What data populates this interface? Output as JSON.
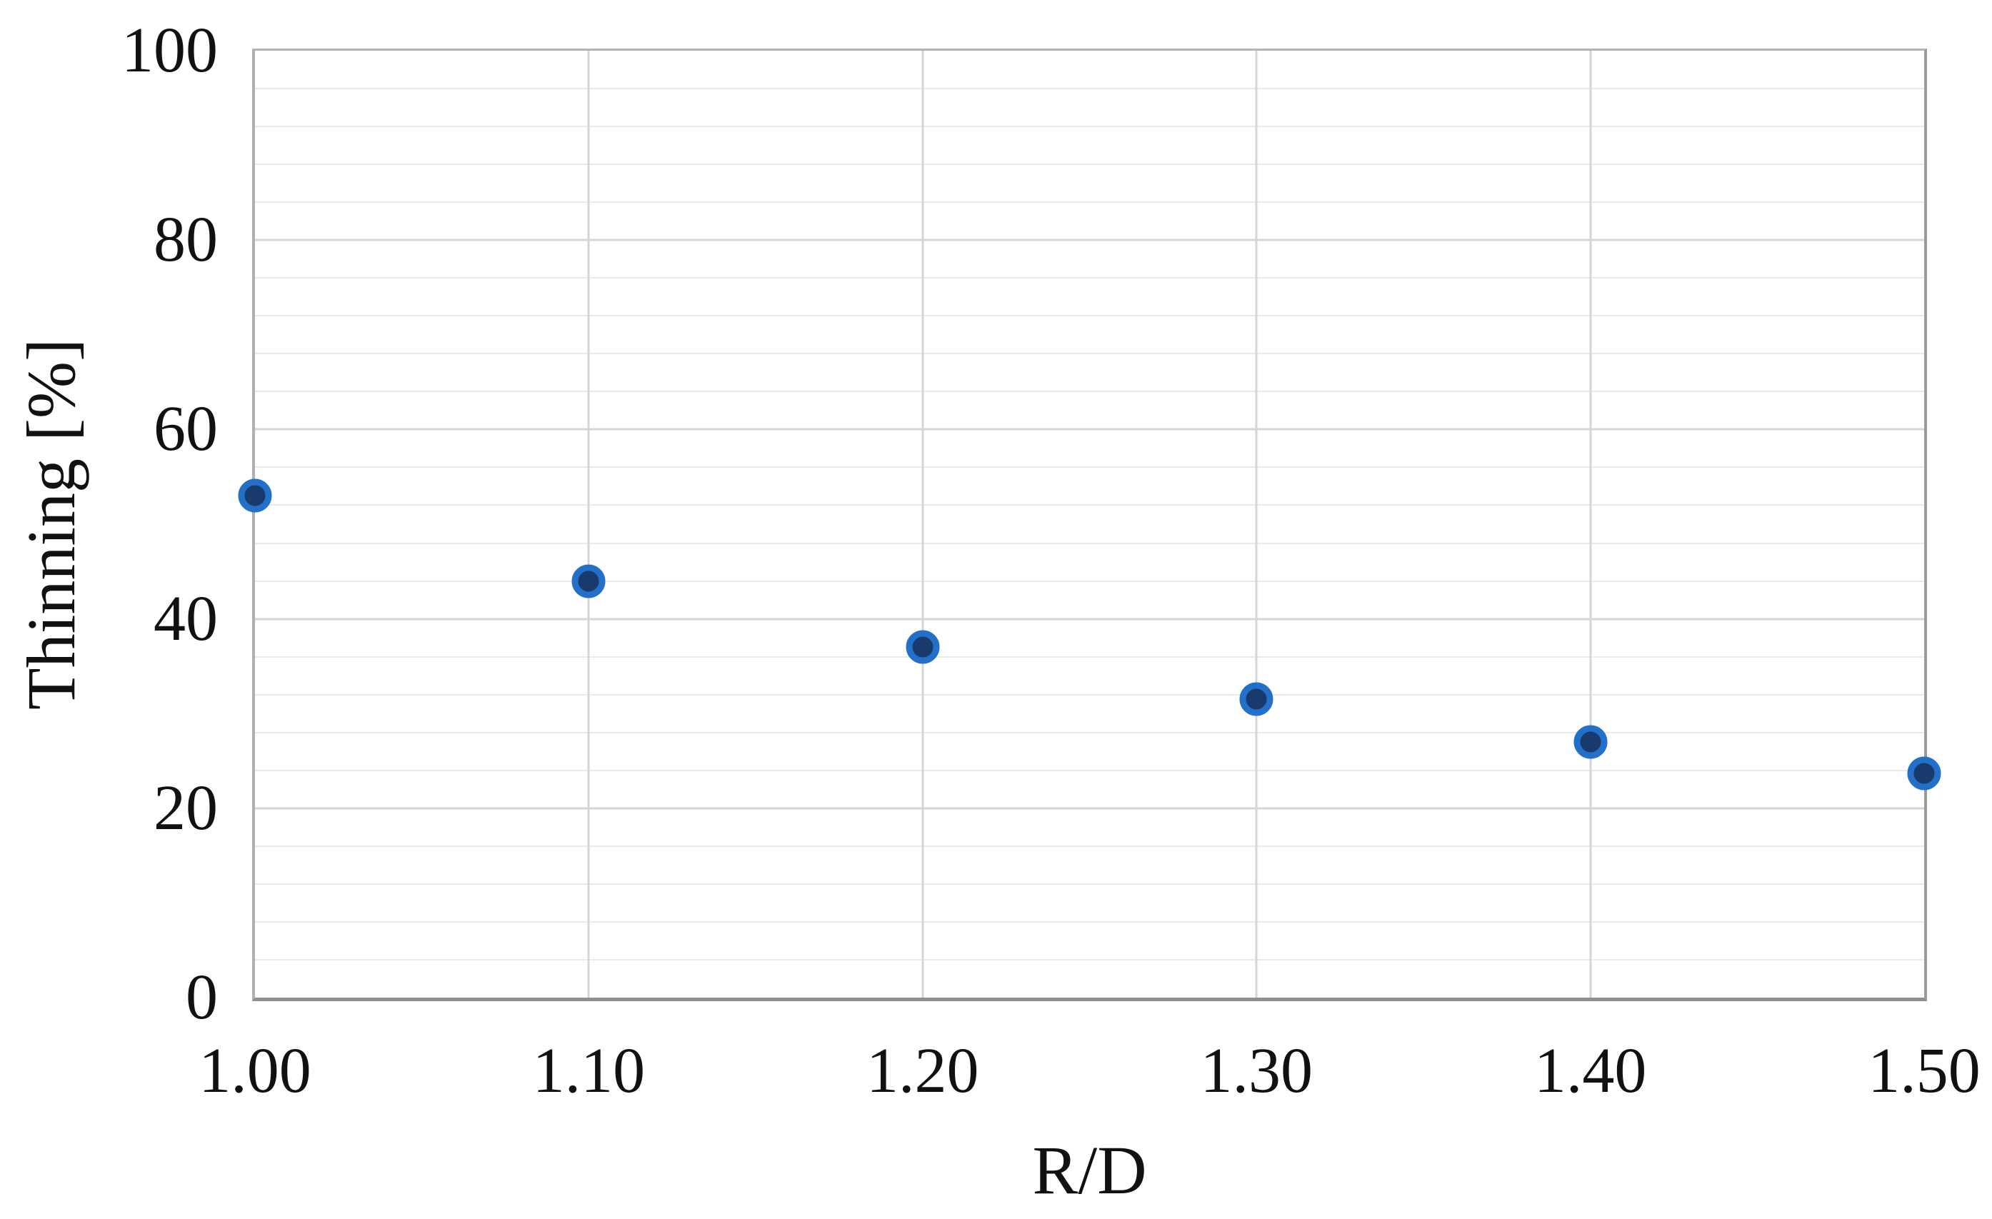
{
  "chart_data": {
    "type": "scatter",
    "title": "",
    "xlabel": "R/D",
    "ylabel": "Thinning [%]",
    "x": [
      1.0,
      1.1,
      1.2,
      1.3,
      1.4,
      1.5
    ],
    "y": [
      53,
      44,
      37,
      31.5,
      27,
      23.7
    ],
    "x_tick_labels": [
      "1.00",
      "1.10",
      "1.20",
      "1.30",
      "1.40",
      "1.50"
    ],
    "y_ticks": [
      0,
      20,
      40,
      60,
      80,
      100
    ],
    "y_tick_labels": [
      "0",
      "20",
      "40",
      "60",
      "80",
      "100"
    ],
    "xlim": [
      1.0,
      1.5
    ],
    "ylim": [
      0,
      100
    ],
    "y_major_step": 20,
    "y_minor_step": 4,
    "grid": {
      "horizontal_major": true,
      "horizontal_minor": true,
      "vertical_major": true,
      "vertical_minor": false
    },
    "legend": "none",
    "marker": {
      "shape": "circle",
      "fill": "#183A6C",
      "border": "#2370C8"
    }
  },
  "colors": {
    "background": "#FFFFFF",
    "text": "#111111",
    "grid_major": "#D5D5D5",
    "grid_minor": "#EAEAEA",
    "vertical_grid": "#D5D5D5",
    "axis_border": "#9A9A9A"
  }
}
